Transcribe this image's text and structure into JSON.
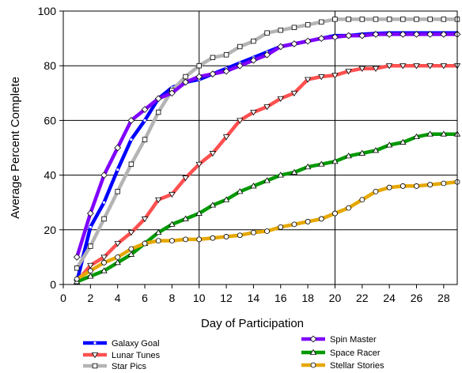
{
  "chart_data": {
    "type": "line",
    "title": "",
    "xlabel": "Day of Participation",
    "ylabel": "Average Percent Complete",
    "xlim": [
      0,
      29
    ],
    "ylim": [
      0,
      100
    ],
    "xticks": [
      0,
      2,
      4,
      6,
      8,
      10,
      12,
      14,
      16,
      18,
      20,
      22,
      24,
      26,
      28
    ],
    "yticks": [
      0,
      20,
      40,
      60,
      80,
      100
    ],
    "grid": "horizontal at each y tick; vertical at x = 10 and x = 20",
    "legend": "bottom, two columns",
    "series": [
      {
        "name": "Galaxy Goal",
        "color": "#0000ff",
        "marker": "dot",
        "x": [
          1,
          2,
          3,
          4,
          5,
          6,
          7,
          8,
          9,
          10,
          11,
          12,
          13,
          14,
          15,
          16,
          17,
          18,
          19,
          20,
          21,
          22,
          23,
          24,
          25,
          26,
          27,
          28,
          29
        ],
        "y": [
          1,
          21,
          30,
          42,
          53,
          60,
          68,
          72,
          74,
          75,
          77,
          79,
          81,
          83,
          85,
          87,
          88,
          89,
          90,
          91,
          91,
          91.5,
          91.8,
          92,
          92,
          92,
          92,
          92,
          92
        ]
      },
      {
        "name": "Lunar Tunes",
        "color": "#ff5050",
        "marker": "triangle-down",
        "x": [
          1,
          2,
          3,
          4,
          5,
          6,
          7,
          8,
          9,
          10,
          11,
          12,
          13,
          14,
          15,
          16,
          17,
          18,
          19,
          20,
          21,
          22,
          23,
          24,
          25,
          26,
          27,
          28,
          29
        ],
        "y": [
          1,
          7,
          10,
          15,
          19,
          24,
          31,
          33,
          39,
          44,
          48,
          54,
          60,
          63,
          65,
          68,
          70,
          75,
          76,
          76.5,
          78,
          79,
          79,
          80,
          80,
          80,
          80,
          80,
          80
        ]
      },
      {
        "name": "Star Pics",
        "color": "#b4b4b4",
        "marker": "square-open",
        "x": [
          1,
          2,
          3,
          4,
          5,
          6,
          7,
          8,
          9,
          10,
          11,
          12,
          13,
          14,
          15,
          16,
          17,
          18,
          19,
          20,
          21,
          22,
          23,
          24,
          25,
          26,
          27,
          28,
          29
        ],
        "y": [
          6,
          14,
          24,
          34,
          44,
          53,
          63,
          71,
          76,
          80,
          83,
          84,
          87,
          89,
          92,
          93,
          94,
          95,
          96,
          97,
          97,
          97,
          97,
          97,
          97,
          97,
          97,
          97,
          97
        ]
      },
      {
        "name": "Spin Master",
        "color": "#7f00ff",
        "marker": "diamond-open",
        "x": [
          1,
          2,
          3,
          4,
          5,
          6,
          7,
          8,
          9,
          10,
          11,
          12,
          13,
          14,
          15,
          16,
          17,
          18,
          19,
          20,
          21,
          22,
          23,
          24,
          25,
          26,
          27,
          28,
          29
        ],
        "y": [
          10,
          26,
          40,
          50,
          60,
          64,
          68,
          70,
          74,
          76,
          77,
          78,
          80,
          82,
          84,
          87,
          88,
          89,
          90,
          90.5,
          91,
          91,
          91.5,
          91.5,
          91.5,
          91.5,
          91.5,
          91.5,
          91.5
        ]
      },
      {
        "name": "Space Racer",
        "color": "#009900",
        "marker": "triangle-open",
        "x": [
          1,
          2,
          3,
          4,
          5,
          6,
          7,
          8,
          9,
          10,
          11,
          12,
          13,
          14,
          15,
          16,
          17,
          18,
          19,
          20,
          21,
          22,
          23,
          24,
          25,
          26,
          27,
          28,
          29
        ],
        "y": [
          1,
          3,
          5,
          8,
          11,
          15,
          19,
          22,
          24,
          26,
          29,
          31,
          34,
          36,
          38,
          40,
          41,
          43,
          44,
          45,
          47,
          48,
          49,
          51,
          52,
          54,
          55,
          55,
          55
        ]
      },
      {
        "name": "Stellar Stories",
        "color": "#e6a800",
        "marker": "circle-open",
        "x": [
          1,
          2,
          3,
          4,
          5,
          6,
          7,
          8,
          9,
          10,
          11,
          12,
          13,
          14,
          15,
          16,
          17,
          18,
          19,
          20,
          21,
          22,
          23,
          24,
          25,
          26,
          27,
          28,
          29
        ],
        "y": [
          2,
          5,
          8,
          10,
          13,
          15,
          16,
          16,
          16.5,
          16.5,
          17,
          17.5,
          18,
          19,
          19.5,
          21,
          22,
          23,
          24,
          26,
          28,
          31,
          34,
          35.5,
          36,
          36,
          36.5,
          37,
          37.5
        ]
      }
    ]
  }
}
